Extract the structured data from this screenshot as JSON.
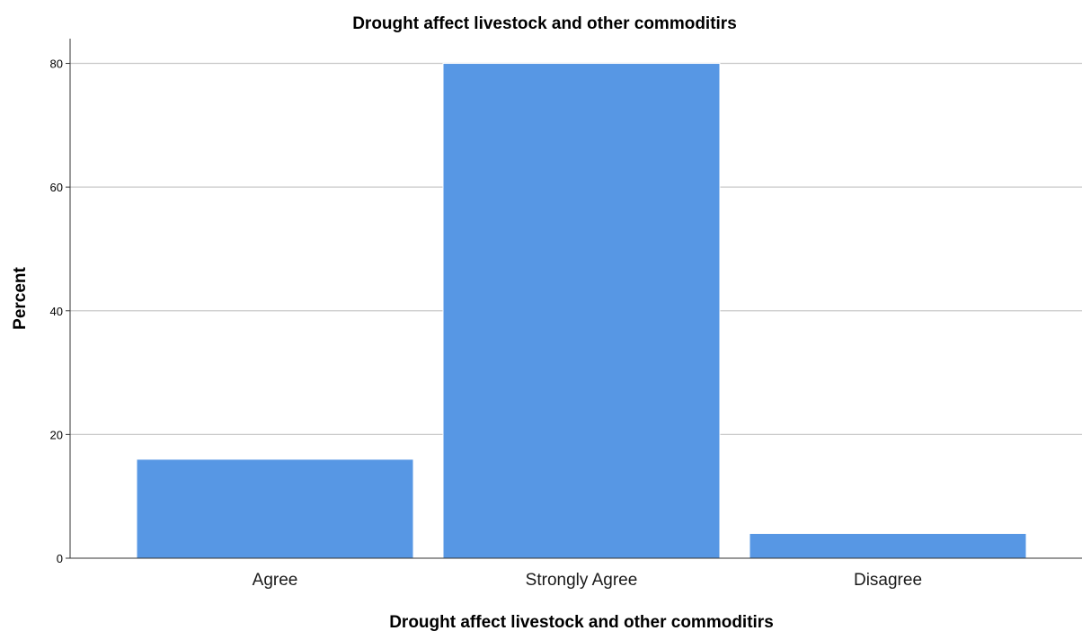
{
  "chart_data": {
    "type": "bar",
    "title": "Drought affect livestock and other commoditirs",
    "xlabel": "Drought affect livestock and other commoditirs",
    "ylabel": "Percent",
    "categories": [
      "Agree",
      "Strongly Agree",
      "Disagree"
    ],
    "values": [
      16,
      80,
      4
    ],
    "ylim": [
      0,
      84
    ],
    "yticks": [
      0,
      20,
      40,
      60,
      80
    ],
    "ytick_labels": [
      "0",
      "20",
      "40",
      "60",
      "80"
    ],
    "grid": true,
    "grid_axis": "y",
    "legend": "none",
    "colors": {
      "bar": "#5797e4",
      "bar_edge": "#ffffff",
      "grid": "#c8c8c8",
      "axis": "#333333",
      "background": "#ffffff"
    }
  }
}
